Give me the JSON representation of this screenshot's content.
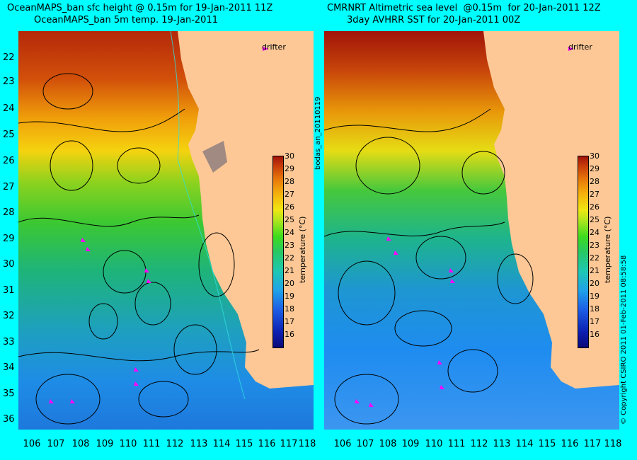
{
  "titles": {
    "left_line1": "OceanMAPS_ban sfc height @ 0.15m for 19-Jan-2011 11Z",
    "left_line2": "OceanMAPS_ban 5m temp. 19-Jan-2011",
    "right_line1": "CMRNRT Altimetric sea level  @0.15m  for 20-Jan-2011 12Z",
    "right_line2": "3day AVHRR SST for 20-Jan-2011 00Z"
  },
  "lat_labels": [
    "22",
    "23",
    "24",
    "25",
    "26",
    "27",
    "28",
    "29",
    "30",
    "31",
    "32",
    "33",
    "34",
    "35",
    "36"
  ],
  "lon_labels": [
    "106",
    "107",
    "108",
    "109",
    "110",
    "111",
    "112",
    "113",
    "114",
    "115",
    "116",
    "117",
    "118"
  ],
  "drifter_label": "drifter",
  "colorbar": {
    "ticks": [
      "30",
      "29",
      "28",
      "27",
      "26",
      "25",
      "24",
      "23",
      "22",
      "21",
      "20",
      "19",
      "18",
      "17",
      "16"
    ],
    "label": "temperature (°C)"
  },
  "side_text_left": "bodas_an_20110119",
  "side_text_right": "© Copyright CSIRO 2011   01-Feb-2011 08:58:58",
  "colors": {
    "background": "#00ffff",
    "land": "#fdc896",
    "drifter": "#ff00ff",
    "contour": "#000000"
  }
}
